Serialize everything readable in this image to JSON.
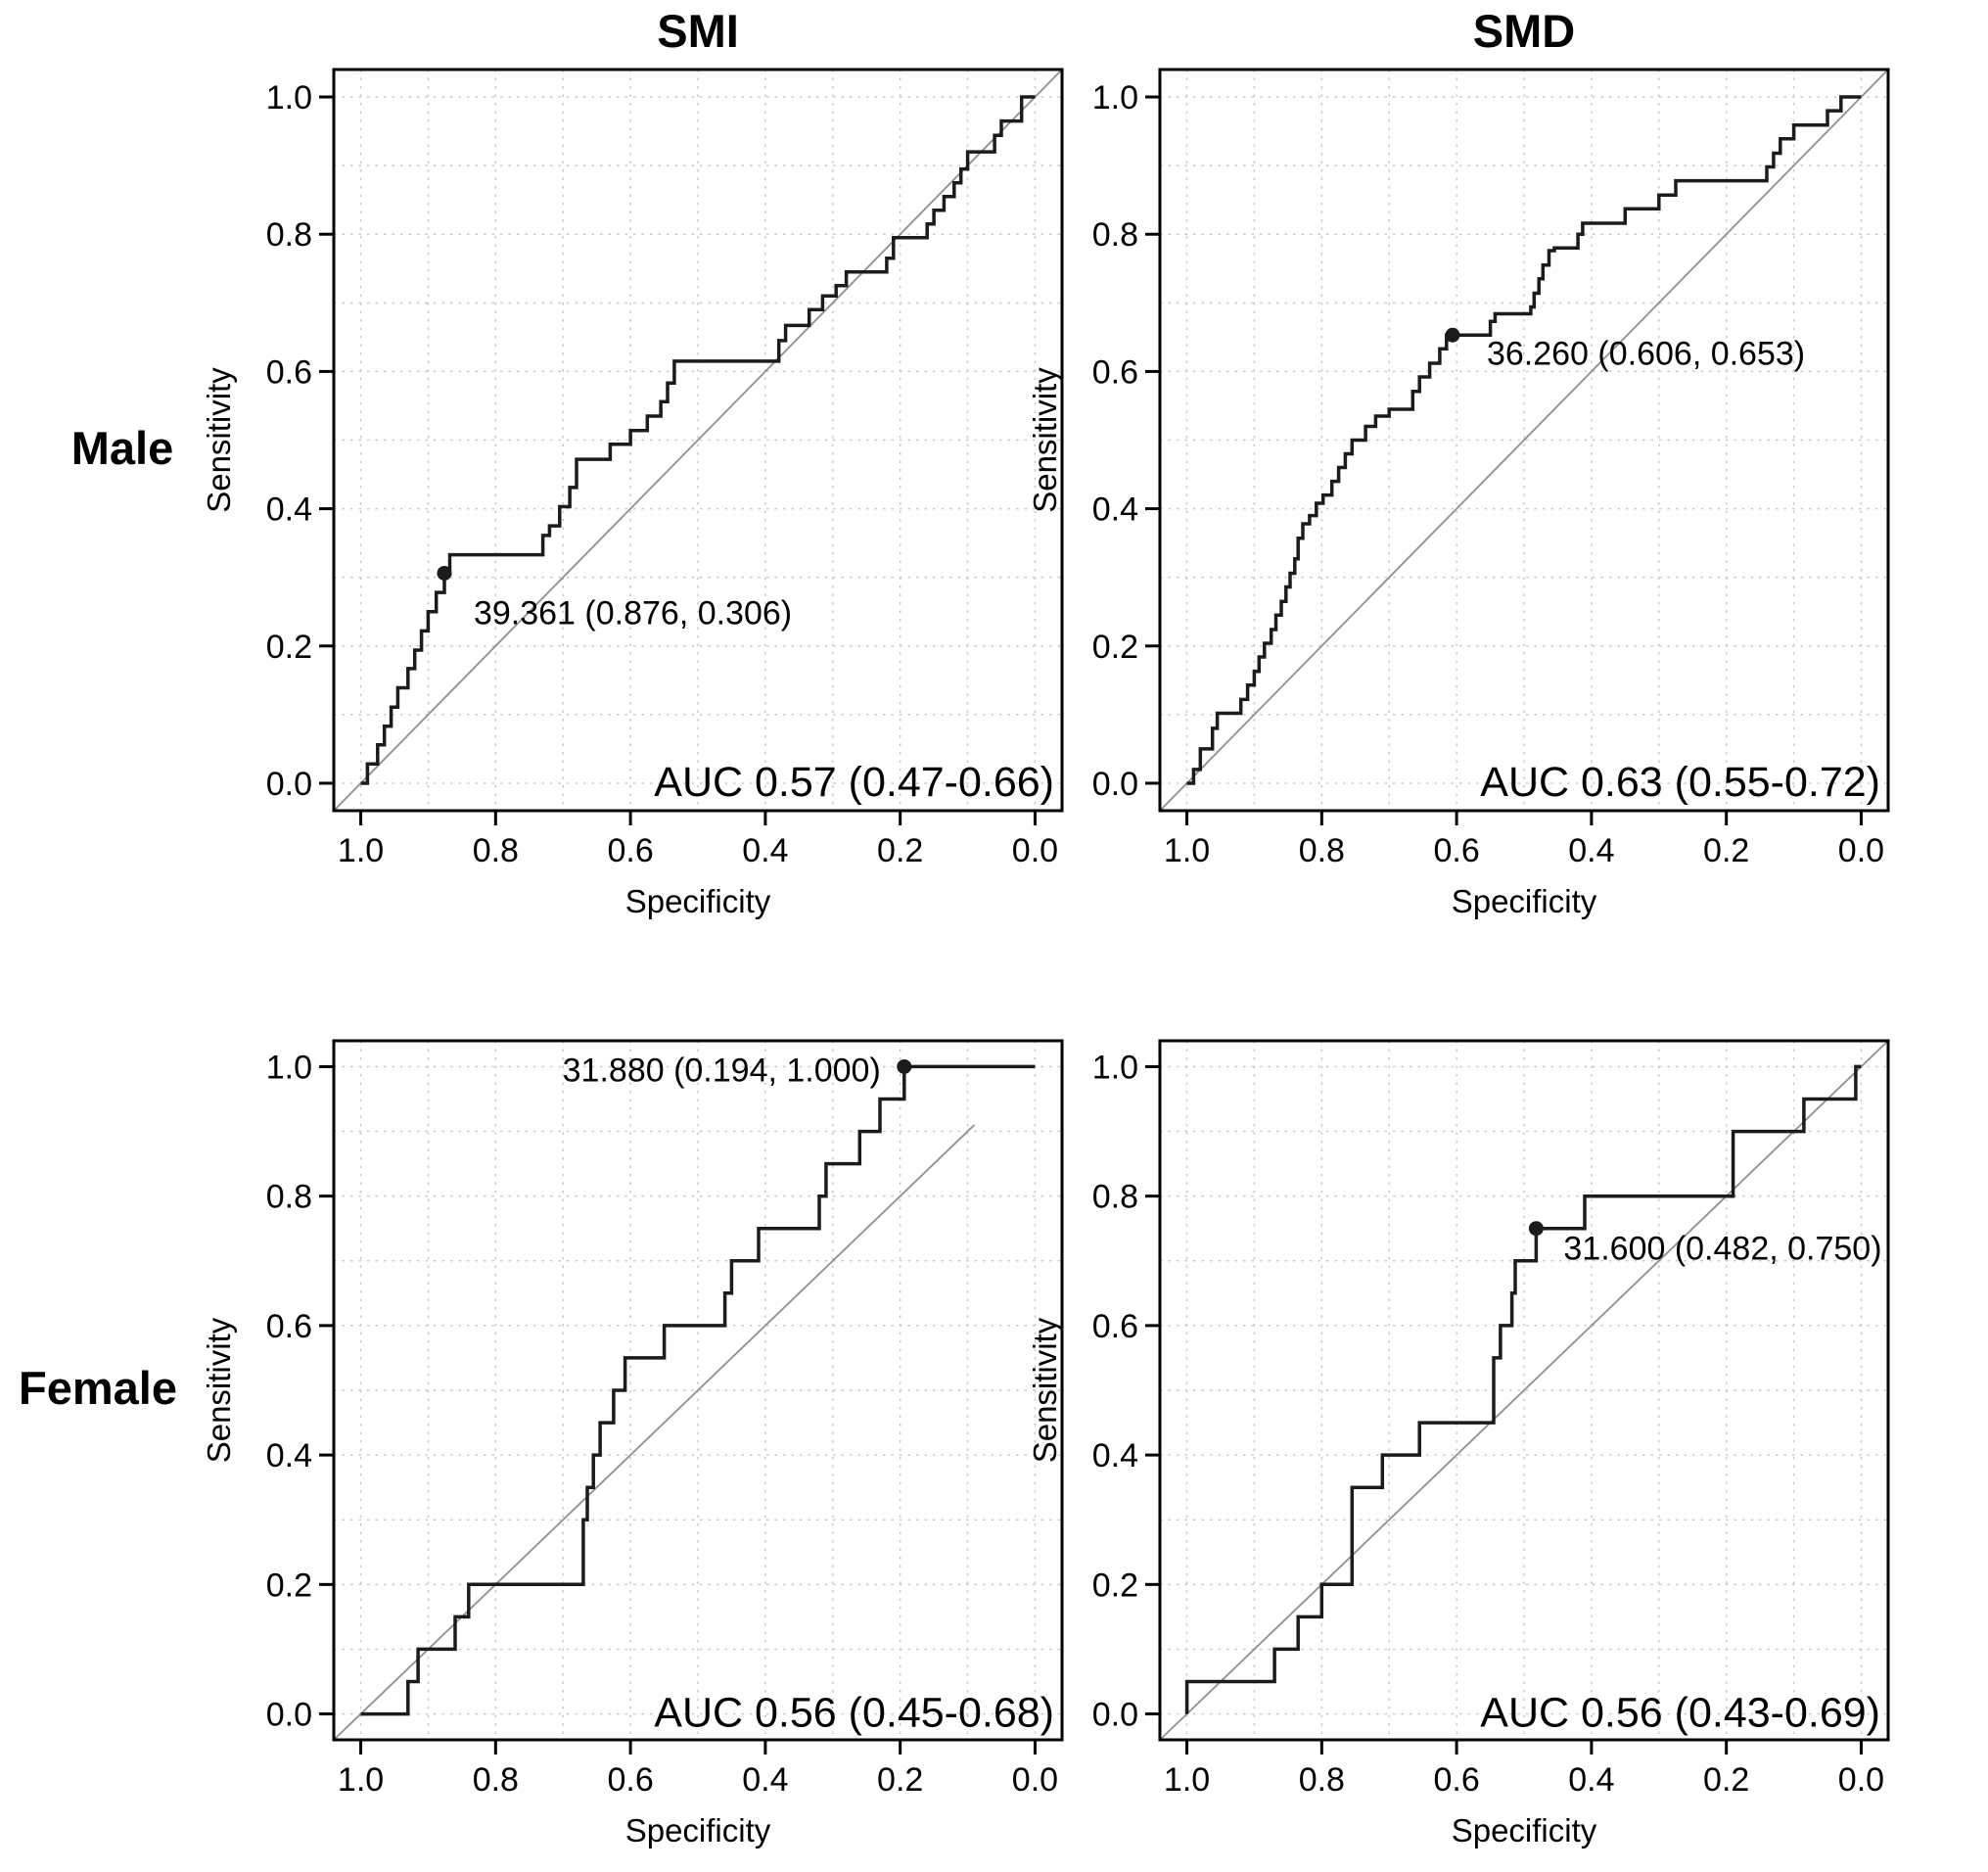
{
  "figure": {
    "background": "#ffffff",
    "col_titles": [
      "SMI",
      "SMD"
    ],
    "row_labels": [
      "Male",
      "Female"
    ],
    "xlabel": "Specificity",
    "ylabel": "Sensitivity",
    "x_tick_labels": [
      "1.0",
      "0.8",
      "0.6",
      "0.4",
      "0.2",
      "0.0"
    ],
    "y_tick_labels": [
      "0.0",
      "0.2",
      "0.4",
      "0.6",
      "0.8",
      "1.0"
    ],
    "colors": {
      "curve": "#1b1b1b",
      "diagonal": "#8f8f8f",
      "grid": "#c9c9c9",
      "text": "#000000",
      "box": "#000000"
    }
  },
  "chart_data": [
    {
      "type": "line",
      "subtype": "roc-step",
      "row": "Male",
      "col": "SMI",
      "xlabel": "Specificity",
      "ylabel": "Sensitivity",
      "x_reversed": true,
      "xlim": [
        1.0,
        0.0
      ],
      "ylim": [
        0.0,
        1.0
      ],
      "grid": true,
      "auc": 0.57,
      "auc_ci": [
        0.47,
        0.66
      ],
      "auc_label": "AUC 0.57 (0.47-0.66)",
      "cutoff": {
        "threshold": 39.361,
        "specificity": 0.876,
        "sensitivity": 0.306,
        "label": "39.361 (0.876, 0.306)"
      },
      "diagonal": [
        1.04,
        -0.04,
        -0.04,
        1.04
      ],
      "points": [
        [
          1.0,
          0
        ],
        [
          0.99,
          0
        ],
        [
          0.99,
          0.028
        ],
        [
          0.975,
          0.028
        ],
        [
          0.975,
          0.056
        ],
        [
          0.965,
          0.056
        ],
        [
          0.965,
          0.083
        ],
        [
          0.955,
          0.083
        ],
        [
          0.955,
          0.111
        ],
        [
          0.945,
          0.111
        ],
        [
          0.945,
          0.139
        ],
        [
          0.93,
          0.139
        ],
        [
          0.93,
          0.167
        ],
        [
          0.92,
          0.167
        ],
        [
          0.92,
          0.194
        ],
        [
          0.91,
          0.194
        ],
        [
          0.91,
          0.222
        ],
        [
          0.9,
          0.222
        ],
        [
          0.9,
          0.25
        ],
        [
          0.888,
          0.25
        ],
        [
          0.888,
          0.278
        ],
        [
          0.876,
          0.278
        ],
        [
          0.876,
          0.306
        ],
        [
          0.868,
          0.306
        ],
        [
          0.868,
          0.333
        ],
        [
          0.73,
          0.333
        ],
        [
          0.73,
          0.361
        ],
        [
          0.72,
          0.361
        ],
        [
          0.72,
          0.375
        ],
        [
          0.705,
          0.375
        ],
        [
          0.705,
          0.403
        ],
        [
          0.69,
          0.403
        ],
        [
          0.69,
          0.431
        ],
        [
          0.68,
          0.431
        ],
        [
          0.68,
          0.472
        ],
        [
          0.63,
          0.472
        ],
        [
          0.63,
          0.494
        ],
        [
          0.6,
          0.494
        ],
        [
          0.6,
          0.514
        ],
        [
          0.575,
          0.514
        ],
        [
          0.575,
          0.535
        ],
        [
          0.555,
          0.535
        ],
        [
          0.555,
          0.556
        ],
        [
          0.545,
          0.556
        ],
        [
          0.545,
          0.583
        ],
        [
          0.535,
          0.583
        ],
        [
          0.535,
          0.615
        ],
        [
          0.38,
          0.615
        ],
        [
          0.38,
          0.645
        ],
        [
          0.37,
          0.645
        ],
        [
          0.37,
          0.667
        ],
        [
          0.335,
          0.667
        ],
        [
          0.335,
          0.69
        ],
        [
          0.315,
          0.69
        ],
        [
          0.315,
          0.71
        ],
        [
          0.295,
          0.71
        ],
        [
          0.295,
          0.725
        ],
        [
          0.28,
          0.725
        ],
        [
          0.28,
          0.745
        ],
        [
          0.22,
          0.745
        ],
        [
          0.22,
          0.765
        ],
        [
          0.21,
          0.765
        ],
        [
          0.21,
          0.795
        ],
        [
          0.16,
          0.795
        ],
        [
          0.16,
          0.815
        ],
        [
          0.15,
          0.815
        ],
        [
          0.15,
          0.835
        ],
        [
          0.135,
          0.835
        ],
        [
          0.135,
          0.855
        ],
        [
          0.12,
          0.855
        ],
        [
          0.12,
          0.875
        ],
        [
          0.11,
          0.875
        ],
        [
          0.11,
          0.895
        ],
        [
          0.1,
          0.895
        ],
        [
          0.1,
          0.92
        ],
        [
          0.06,
          0.92
        ],
        [
          0.06,
          0.944
        ],
        [
          0.05,
          0.944
        ],
        [
          0.05,
          0.965
        ],
        [
          0.02,
          0.965
        ],
        [
          0.02,
          1.0
        ],
        [
          0.0,
          1.0
        ]
      ]
    },
    {
      "type": "line",
      "subtype": "roc-step",
      "row": "Male",
      "col": "SMD",
      "xlabel": "Specificity",
      "ylabel": "Sensitivity",
      "x_reversed": true,
      "xlim": [
        1.0,
        0.0
      ],
      "ylim": [
        0.0,
        1.0
      ],
      "grid": true,
      "auc": 0.63,
      "auc_ci": [
        0.55,
        0.72
      ],
      "auc_label": "AUC 0.63 (0.55-0.72)",
      "cutoff": {
        "threshold": 36.26,
        "specificity": 0.606,
        "sensitivity": 0.653,
        "label": "36.260 (0.606, 0.653)"
      },
      "diagonal": [
        1.04,
        -0.04,
        -0.04,
        1.04
      ],
      "points": [
        [
          1.0,
          0
        ],
        [
          0.99,
          0
        ],
        [
          0.99,
          0.02
        ],
        [
          0.98,
          0.02
        ],
        [
          0.98,
          0.05
        ],
        [
          0.962,
          0.05
        ],
        [
          0.962,
          0.08
        ],
        [
          0.955,
          0.08
        ],
        [
          0.955,
          0.102
        ],
        [
          0.92,
          0.102
        ],
        [
          0.92,
          0.122
        ],
        [
          0.91,
          0.122
        ],
        [
          0.91,
          0.143
        ],
        [
          0.9,
          0.143
        ],
        [
          0.9,
          0.163
        ],
        [
          0.893,
          0.163
        ],
        [
          0.893,
          0.184
        ],
        [
          0.885,
          0.184
        ],
        [
          0.885,
          0.204
        ],
        [
          0.875,
          0.204
        ],
        [
          0.875,
          0.224
        ],
        [
          0.868,
          0.224
        ],
        [
          0.868,
          0.245
        ],
        [
          0.86,
          0.245
        ],
        [
          0.86,
          0.265
        ],
        [
          0.853,
          0.265
        ],
        [
          0.853,
          0.286
        ],
        [
          0.847,
          0.286
        ],
        [
          0.847,
          0.306
        ],
        [
          0.84,
          0.306
        ],
        [
          0.84,
          0.327
        ],
        [
          0.835,
          0.327
        ],
        [
          0.835,
          0.357
        ],
        [
          0.828,
          0.357
        ],
        [
          0.828,
          0.378
        ],
        [
          0.818,
          0.378
        ],
        [
          0.818,
          0.39
        ],
        [
          0.808,
          0.39
        ],
        [
          0.808,
          0.408
        ],
        [
          0.798,
          0.408
        ],
        [
          0.798,
          0.42
        ],
        [
          0.785,
          0.42
        ],
        [
          0.785,
          0.44
        ],
        [
          0.775,
          0.44
        ],
        [
          0.775,
          0.46
        ],
        [
          0.765,
          0.46
        ],
        [
          0.765,
          0.48
        ],
        [
          0.755,
          0.48
        ],
        [
          0.755,
          0.5
        ],
        [
          0.735,
          0.5
        ],
        [
          0.735,
          0.52
        ],
        [
          0.72,
          0.52
        ],
        [
          0.72,
          0.535
        ],
        [
          0.7,
          0.535
        ],
        [
          0.7,
          0.545
        ],
        [
          0.665,
          0.545
        ],
        [
          0.665,
          0.571
        ],
        [
          0.655,
          0.571
        ],
        [
          0.655,
          0.592
        ],
        [
          0.64,
          0.592
        ],
        [
          0.64,
          0.612
        ],
        [
          0.625,
          0.612
        ],
        [
          0.625,
          0.633
        ],
        [
          0.615,
          0.633
        ],
        [
          0.615,
          0.653
        ],
        [
          0.606,
          0.653
        ],
        [
          0.55,
          0.653
        ],
        [
          0.55,
          0.673
        ],
        [
          0.543,
          0.673
        ],
        [
          0.543,
          0.684
        ],
        [
          0.49,
          0.684
        ],
        [
          0.49,
          0.694
        ],
        [
          0.485,
          0.694
        ],
        [
          0.485,
          0.714
        ],
        [
          0.478,
          0.714
        ],
        [
          0.478,
          0.735
        ],
        [
          0.472,
          0.735
        ],
        [
          0.472,
          0.755
        ],
        [
          0.463,
          0.755
        ],
        [
          0.463,
          0.776
        ],
        [
          0.455,
          0.776
        ],
        [
          0.455,
          0.78
        ],
        [
          0.42,
          0.78
        ],
        [
          0.42,
          0.8
        ],
        [
          0.413,
          0.8
        ],
        [
          0.413,
          0.816
        ],
        [
          0.35,
          0.816
        ],
        [
          0.35,
          0.837
        ],
        [
          0.3,
          0.837
        ],
        [
          0.3,
          0.857
        ],
        [
          0.275,
          0.857
        ],
        [
          0.275,
          0.878
        ],
        [
          0.14,
          0.878
        ],
        [
          0.14,
          0.898
        ],
        [
          0.13,
          0.898
        ],
        [
          0.13,
          0.918
        ],
        [
          0.12,
          0.918
        ],
        [
          0.12,
          0.939
        ],
        [
          0.1,
          0.939
        ],
        [
          0.1,
          0.959
        ],
        [
          0.05,
          0.959
        ],
        [
          0.05,
          0.98
        ],
        [
          0.03,
          0.98
        ],
        [
          0.03,
          1.0
        ],
        [
          0.0,
          1.0
        ]
      ]
    },
    {
      "type": "line",
      "subtype": "roc-step",
      "row": "Female",
      "col": "SMI",
      "xlabel": "Specificity",
      "ylabel": "Sensitivity",
      "x_reversed": true,
      "xlim": [
        1.0,
        0.0
      ],
      "ylim": [
        0.0,
        1.0
      ],
      "grid": true,
      "auc": 0.56,
      "auc_ci": [
        0.45,
        0.68
      ],
      "auc_label": "AUC 0.56 (0.45-0.68)",
      "cutoff": {
        "threshold": 31.88,
        "specificity": 0.194,
        "sensitivity": 1.0,
        "label": "31.880 (0.194, 1.000)"
      },
      "diagonal": [
        1.04,
        -0.04,
        0.09,
        0.91
      ],
      "points": [
        [
          1.0,
          0
        ],
        [
          0.93,
          0
        ],
        [
          0.93,
          0.05
        ],
        [
          0.915,
          0.05
        ],
        [
          0.915,
          0.1
        ],
        [
          0.86,
          0.1
        ],
        [
          0.86,
          0.15
        ],
        [
          0.84,
          0.15
        ],
        [
          0.84,
          0.2
        ],
        [
          0.67,
          0.2
        ],
        [
          0.67,
          0.3
        ],
        [
          0.664,
          0.3
        ],
        [
          0.664,
          0.35
        ],
        [
          0.655,
          0.35
        ],
        [
          0.655,
          0.4
        ],
        [
          0.645,
          0.4
        ],
        [
          0.645,
          0.45
        ],
        [
          0.625,
          0.45
        ],
        [
          0.625,
          0.5
        ],
        [
          0.608,
          0.5
        ],
        [
          0.608,
          0.55
        ],
        [
          0.55,
          0.55
        ],
        [
          0.55,
          0.6
        ],
        [
          0.46,
          0.6
        ],
        [
          0.46,
          0.65
        ],
        [
          0.45,
          0.65
        ],
        [
          0.45,
          0.7
        ],
        [
          0.41,
          0.7
        ],
        [
          0.41,
          0.75
        ],
        [
          0.32,
          0.75
        ],
        [
          0.32,
          0.8
        ],
        [
          0.31,
          0.8
        ],
        [
          0.31,
          0.85
        ],
        [
          0.26,
          0.85
        ],
        [
          0.26,
          0.9
        ],
        [
          0.23,
          0.9
        ],
        [
          0.23,
          0.95
        ],
        [
          0.194,
          0.95
        ],
        [
          0.194,
          1.0
        ],
        [
          0.0,
          1.0
        ]
      ]
    },
    {
      "type": "line",
      "subtype": "roc-step",
      "row": "Female",
      "col": "SMD",
      "xlabel": "Specificity",
      "ylabel": "Sensitivity",
      "x_reversed": true,
      "xlim": [
        1.0,
        0.0
      ],
      "ylim": [
        0.0,
        1.0
      ],
      "grid": true,
      "auc": 0.56,
      "auc_ci": [
        0.43,
        0.69
      ],
      "auc_label": "AUC 0.56 (0.43-0.69)",
      "cutoff": {
        "threshold": 31.6,
        "specificity": 0.482,
        "sensitivity": 0.75,
        "label": "31.600 (0.482, 0.750)"
      },
      "diagonal": [
        1.04,
        -0.04,
        -0.04,
        1.04
      ],
      "points": [
        [
          1.0,
          0
        ],
        [
          1.0,
          0.05
        ],
        [
          0.87,
          0.05
        ],
        [
          0.87,
          0.1
        ],
        [
          0.835,
          0.1
        ],
        [
          0.835,
          0.15
        ],
        [
          0.8,
          0.15
        ],
        [
          0.8,
          0.2
        ],
        [
          0.755,
          0.2
        ],
        [
          0.755,
          0.35
        ],
        [
          0.71,
          0.35
        ],
        [
          0.71,
          0.4
        ],
        [
          0.655,
          0.4
        ],
        [
          0.655,
          0.45
        ],
        [
          0.545,
          0.45
        ],
        [
          0.545,
          0.55
        ],
        [
          0.535,
          0.55
        ],
        [
          0.535,
          0.6
        ],
        [
          0.518,
          0.6
        ],
        [
          0.518,
          0.65
        ],
        [
          0.513,
          0.65
        ],
        [
          0.513,
          0.7
        ],
        [
          0.482,
          0.7
        ],
        [
          0.482,
          0.75
        ],
        [
          0.41,
          0.75
        ],
        [
          0.41,
          0.8
        ],
        [
          0.19,
          0.8
        ],
        [
          0.19,
          0.9
        ],
        [
          0.085,
          0.9
        ],
        [
          0.085,
          0.95
        ],
        [
          0.008,
          0.95
        ],
        [
          0.008,
          1.0
        ],
        [
          0.0,
          1.0
        ]
      ]
    }
  ]
}
